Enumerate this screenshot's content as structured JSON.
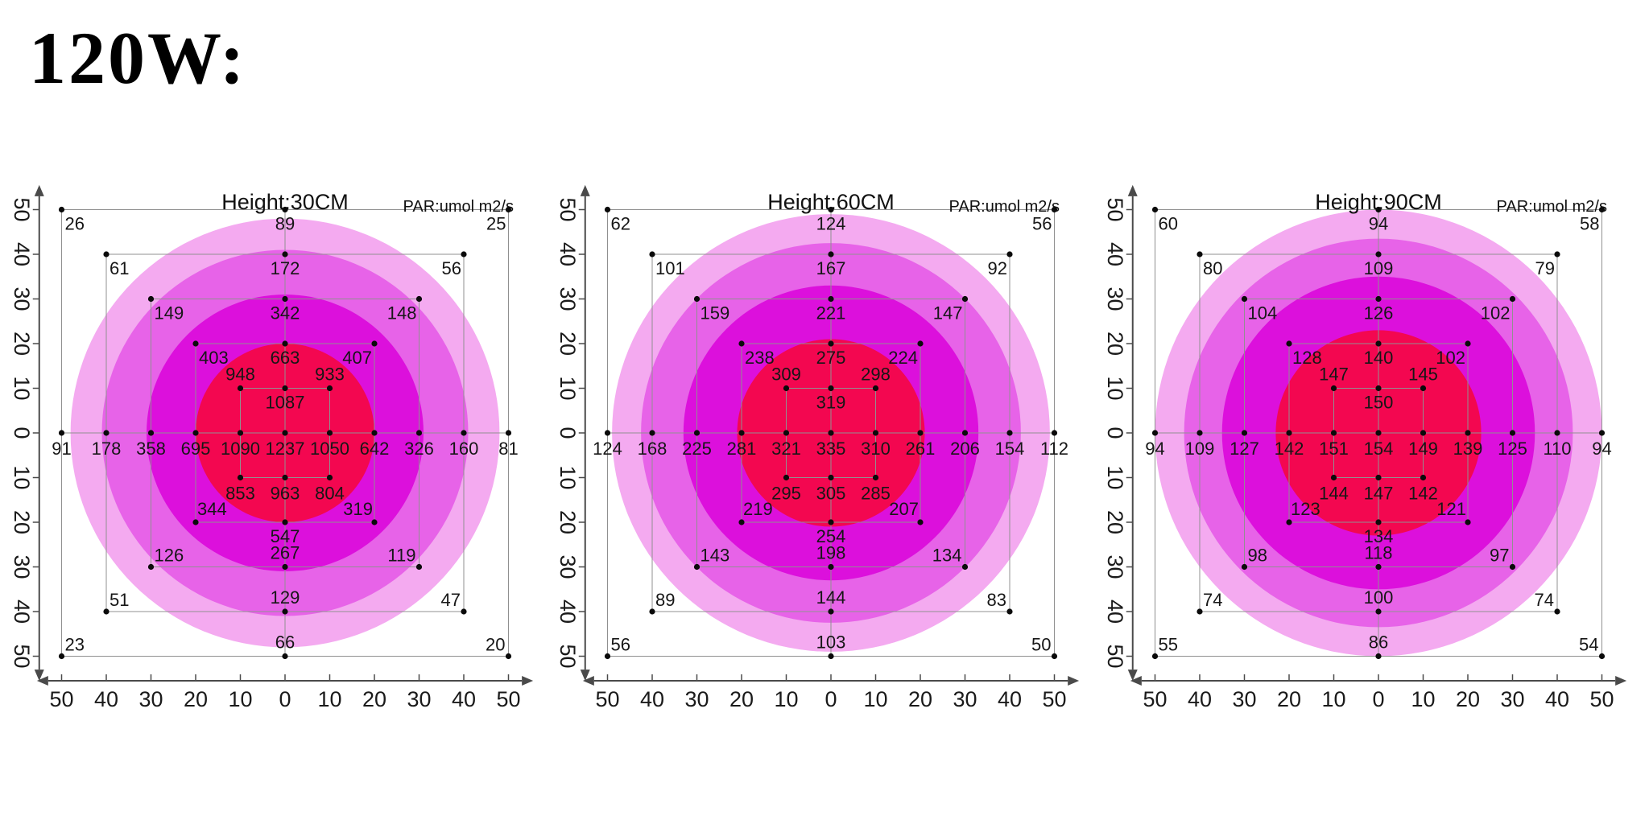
{
  "page_title": "120W:",
  "par_label": "PAR:umol m2/s",
  "axis_ticks": [
    "50",
    "40",
    "30",
    "20",
    "10",
    "0",
    "10",
    "20",
    "30",
    "40",
    "50"
  ],
  "ring_colors": [
    "#F4AAF0",
    "#E763E8",
    "#DC10DC",
    "#F30750"
  ],
  "chart_data": [
    {
      "type": "scatter",
      "title": "Height:30CM",
      "unit": "umol m2/s",
      "x_range": [
        -50,
        50
      ],
      "y_range": [
        -50,
        50
      ],
      "grid": "nested-squares",
      "ring_radii_units": [
        48,
        41,
        31,
        20
      ],
      "points": [
        [
          -50,
          50,
          26
        ],
        [
          0,
          50,
          89
        ],
        [
          50,
          50,
          25
        ],
        [
          -40,
          40,
          61
        ],
        [
          0,
          40,
          172
        ],
        [
          40,
          40,
          56
        ],
        [
          -30,
          30,
          149
        ],
        [
          0,
          30,
          342
        ],
        [
          30,
          30,
          148
        ],
        [
          -20,
          20,
          403
        ],
        [
          0,
          20,
          663
        ],
        [
          20,
          20,
          407
        ],
        [
          -10,
          10,
          948
        ],
        [
          0,
          10,
          1087
        ],
        [
          10,
          10,
          933
        ],
        [
          -50,
          0,
          91
        ],
        [
          -40,
          0,
          178
        ],
        [
          -30,
          0,
          358
        ],
        [
          -20,
          0,
          695
        ],
        [
          -10,
          0,
          1090
        ],
        [
          0,
          0,
          1237
        ],
        [
          10,
          0,
          1050
        ],
        [
          20,
          0,
          642
        ],
        [
          30,
          0,
          326
        ],
        [
          40,
          0,
          160
        ],
        [
          50,
          0,
          81
        ],
        [
          -10,
          -10,
          853
        ],
        [
          0,
          -10,
          963
        ],
        [
          10,
          -10,
          804
        ],
        [
          -20,
          -20,
          344
        ],
        [
          0,
          -20,
          547
        ],
        [
          20,
          -20,
          319
        ],
        [
          -30,
          -30,
          126
        ],
        [
          0,
          -30,
          267
        ],
        [
          30,
          -30,
          119
        ],
        [
          -40,
          -40,
          51
        ],
        [
          0,
          -40,
          129
        ],
        [
          40,
          -40,
          47
        ],
        [
          -50,
          -50,
          23
        ],
        [
          0,
          -50,
          66
        ],
        [
          50,
          -50,
          20
        ]
      ]
    },
    {
      "type": "scatter",
      "title": "Height:60CM",
      "unit": "umol m2/s",
      "x_range": [
        -50,
        50
      ],
      "y_range": [
        -50,
        50
      ],
      "grid": "nested-squares",
      "ring_radii_units": [
        49,
        42.5,
        33,
        21
      ],
      "points": [
        [
          -50,
          50,
          62
        ],
        [
          0,
          50,
          124
        ],
        [
          50,
          50,
          56
        ],
        [
          -40,
          40,
          101
        ],
        [
          0,
          40,
          167
        ],
        [
          40,
          40,
          92
        ],
        [
          -30,
          30,
          159
        ],
        [
          0,
          30,
          221
        ],
        [
          30,
          30,
          147
        ],
        [
          -20,
          20,
          238
        ],
        [
          0,
          20,
          275
        ],
        [
          20,
          20,
          224
        ],
        [
          -10,
          10,
          309
        ],
        [
          0,
          10,
          319
        ],
        [
          10,
          10,
          298
        ],
        [
          -50,
          0,
          124
        ],
        [
          -40,
          0,
          168
        ],
        [
          -30,
          0,
          225
        ],
        [
          -20,
          0,
          281
        ],
        [
          -10,
          0,
          321
        ],
        [
          0,
          0,
          335
        ],
        [
          10,
          0,
          310
        ],
        [
          20,
          0,
          261
        ],
        [
          30,
          0,
          206
        ],
        [
          40,
          0,
          154
        ],
        [
          50,
          0,
          112
        ],
        [
          -10,
          -10,
          295
        ],
        [
          0,
          -10,
          305
        ],
        [
          10,
          -10,
          285
        ],
        [
          -20,
          -20,
          219
        ],
        [
          0,
          -20,
          254
        ],
        [
          20,
          -20,
          207
        ],
        [
          -30,
          -30,
          143
        ],
        [
          0,
          -30,
          198
        ],
        [
          30,
          -30,
          134
        ],
        [
          -40,
          -40,
          89
        ],
        [
          0,
          -40,
          144
        ],
        [
          40,
          -40,
          83
        ],
        [
          -50,
          -50,
          56
        ],
        [
          0,
          -50,
          103
        ],
        [
          50,
          -50,
          50
        ]
      ]
    },
    {
      "type": "scatter",
      "title": "Height:90CM",
      "unit": "umol m2/s",
      "x_range": [
        -50,
        50
      ],
      "y_range": [
        -50,
        50
      ],
      "grid": "nested-squares",
      "ring_radii_units": [
        50,
        43.5,
        35,
        23
      ],
      "points": [
        [
          -50,
          50,
          60
        ],
        [
          0,
          50,
          94
        ],
        [
          50,
          50,
          58
        ],
        [
          -40,
          40,
          80
        ],
        [
          0,
          40,
          109
        ],
        [
          40,
          40,
          79
        ],
        [
          -30,
          30,
          104
        ],
        [
          0,
          30,
          126
        ],
        [
          30,
          30,
          102
        ],
        [
          -20,
          20,
          128
        ],
        [
          0,
          20,
          140
        ],
        [
          20,
          20,
          102
        ],
        [
          -10,
          10,
          147
        ],
        [
          0,
          10,
          150
        ],
        [
          10,
          10,
          145
        ],
        [
          -50,
          0,
          94
        ],
        [
          -40,
          0,
          109
        ],
        [
          -30,
          0,
          127
        ],
        [
          -20,
          0,
          142
        ],
        [
          -10,
          0,
          151
        ],
        [
          0,
          0,
          154
        ],
        [
          10,
          0,
          149
        ],
        [
          20,
          0,
          139
        ],
        [
          30,
          0,
          125
        ],
        [
          40,
          0,
          110
        ],
        [
          50,
          0,
          94
        ],
        [
          -10,
          -10,
          144
        ],
        [
          0,
          -10,
          147
        ],
        [
          10,
          -10,
          142
        ],
        [
          -20,
          -20,
          123
        ],
        [
          0,
          -20,
          134
        ],
        [
          20,
          -20,
          121
        ],
        [
          -30,
          -30,
          98
        ],
        [
          0,
          -30,
          118
        ],
        [
          30,
          -30,
          97
        ],
        [
          -40,
          -40,
          74
        ],
        [
          0,
          -40,
          100
        ],
        [
          40,
          -40,
          74
        ],
        [
          -50,
          -50,
          55
        ],
        [
          0,
          -50,
          86
        ],
        [
          50,
          -50,
          54
        ]
      ]
    }
  ]
}
